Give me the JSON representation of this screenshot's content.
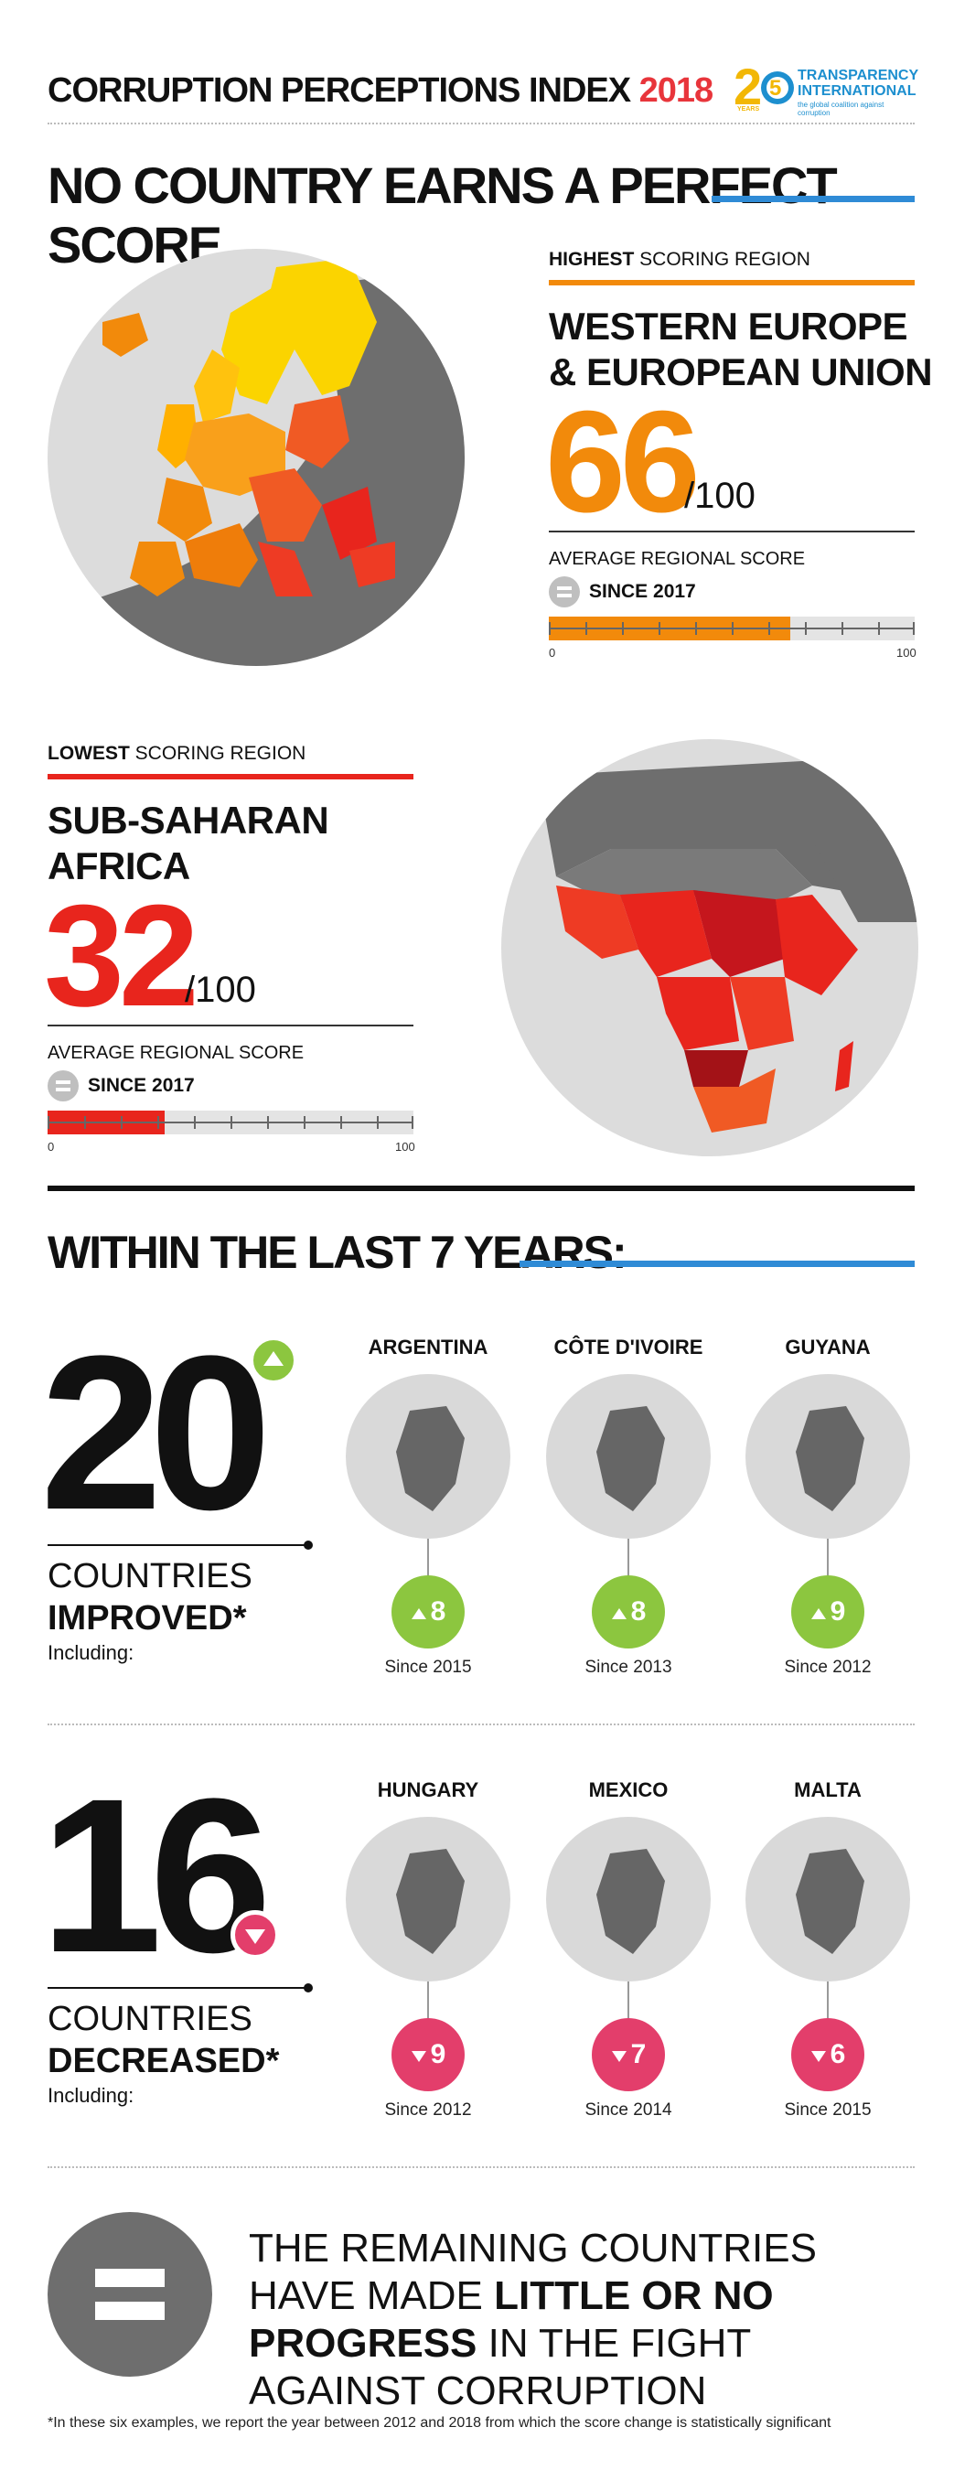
{
  "header": {
    "title": "CORRUPTION PERCEPTIONS INDEX",
    "year": "2018",
    "logo": {
      "number": "25",
      "years_label": "YEARS",
      "line1": "TRANSPARENCY",
      "line2": "INTERNATIONAL",
      "tagline": "the global coalition against corruption"
    }
  },
  "headline": "NO COUNTRY EARNS A PERFECT SCORE",
  "highest": {
    "label_bold": "HIGHEST",
    "label_rest": " SCORING REGION",
    "name_line1": "WESTERN EUROPE",
    "name_line2": "& EUROPEAN UNION",
    "score": "66",
    "denominator": "/100",
    "avg_label": "AVERAGE REGIONAL SCORE",
    "since": "SINCE 2017",
    "bar_fraction": 0.66,
    "bar_min": "0",
    "bar_max": "100",
    "color": "#f28a0b"
  },
  "lowest": {
    "label_bold": "LOWEST",
    "label_rest": " SCORING REGION",
    "name_line1": "SUB-SAHARAN",
    "name_line2": "AFRICA",
    "score": "32",
    "denominator": "/100",
    "avg_label": "AVERAGE REGIONAL SCORE",
    "since": "SINCE 2017",
    "bar_fraction": 0.32,
    "bar_min": "0",
    "bar_max": "100",
    "color": "#e8251d"
  },
  "section2_title": "WITHIN THE LAST 7 YEARS:",
  "improved": {
    "count": "20",
    "line1": "COUNTRIES",
    "line2": "IMPROVED*",
    "including": "Including:",
    "color": "#8cc63f",
    "countries": [
      {
        "name": "ARGENTINA",
        "change": "8",
        "since": "Since 2015"
      },
      {
        "name": "CÔTE D'IVOIRE",
        "change": "8",
        "since": "Since 2013"
      },
      {
        "name": "GUYANA",
        "change": "9",
        "since": "Since 2012"
      }
    ]
  },
  "decreased": {
    "count": "16",
    "line1": "COUNTRIES",
    "line2": "DECREASED*",
    "including": "Including:",
    "color": "#e33e6b",
    "countries": [
      {
        "name": "HUNGARY",
        "change": "9",
        "since": "Since 2012"
      },
      {
        "name": "MEXICO",
        "change": "7",
        "since": "Since 2014"
      },
      {
        "name": "MALTA",
        "change": "6",
        "since": "Since 2015"
      }
    ]
  },
  "remaining": {
    "part1": "THE REMAINING COUNTRIES HAVE MADE ",
    "part2": "LITTLE OR NO PROGRESS",
    "part3": " IN THE FIGHT AGAINST CORRUPTION"
  },
  "footnote": "*In these six examples, we report the year between 2012 and 2018 from which the score change is statistically significant"
}
